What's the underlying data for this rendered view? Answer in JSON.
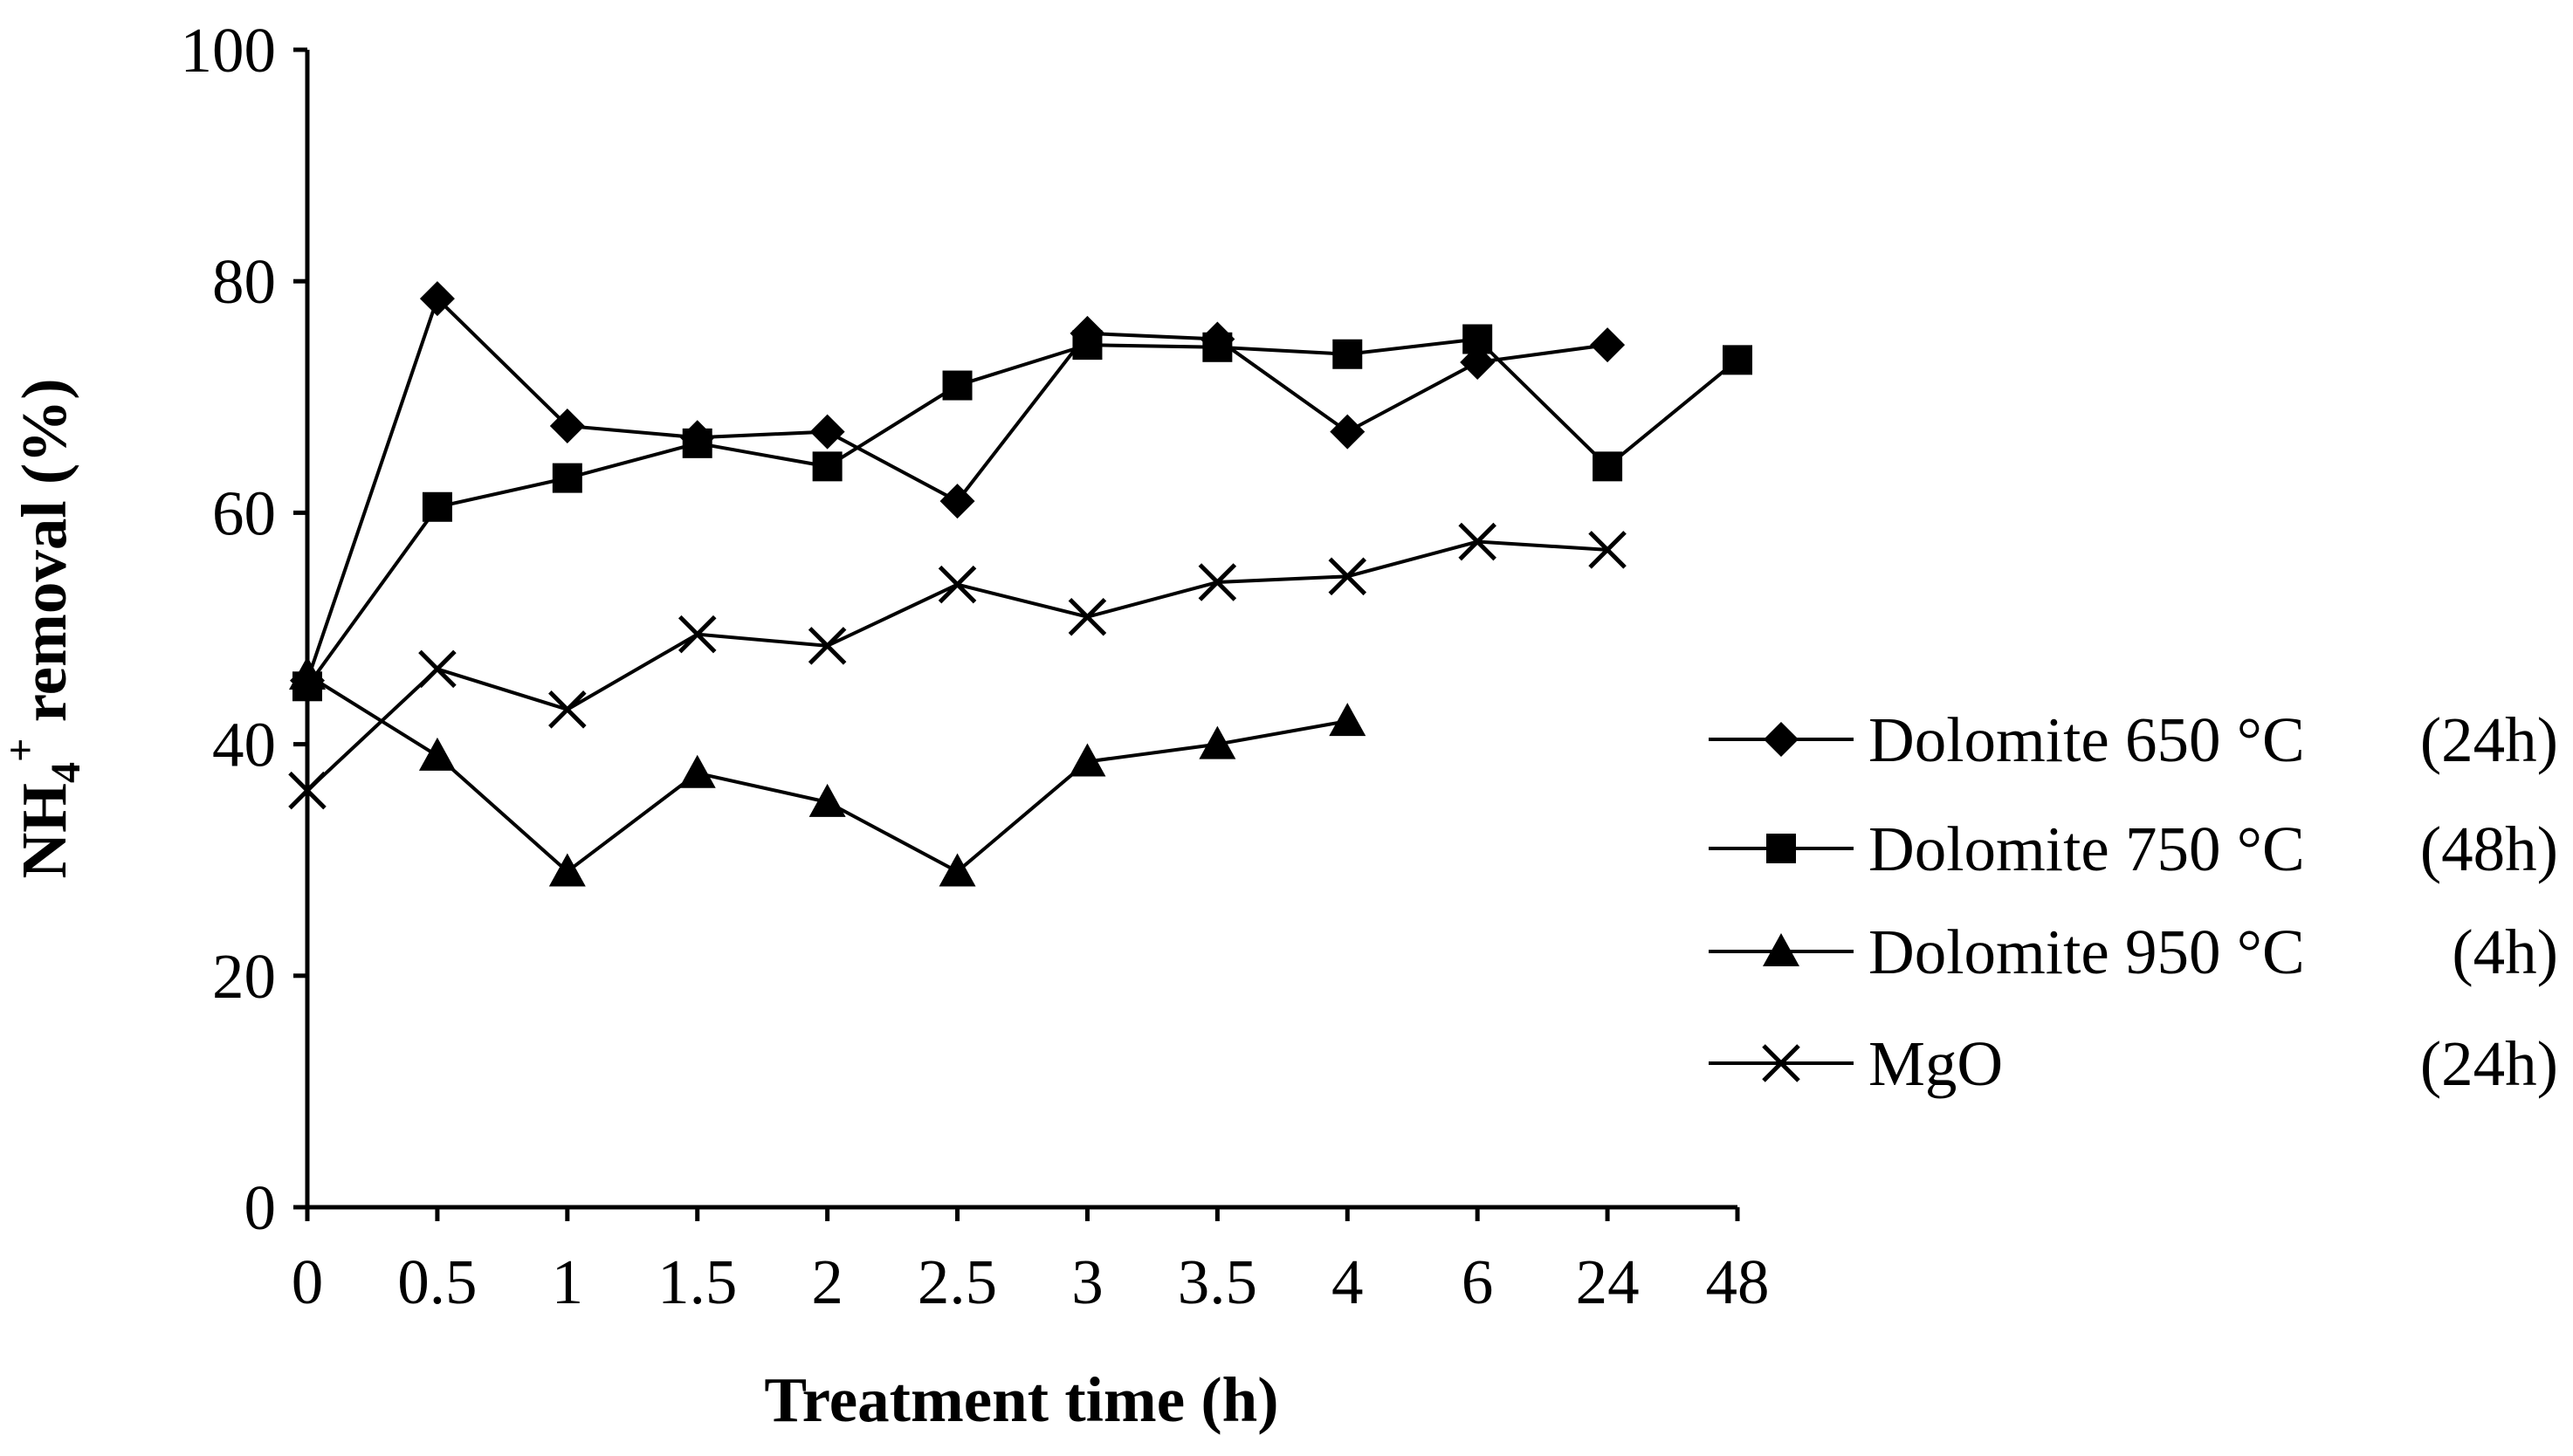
{
  "chart_data": {
    "type": "line",
    "title": "",
    "xlabel": "Treatment time (h)",
    "ylabel": "NH4+ removal (%)",
    "ylabel_parts": {
      "base": "NH",
      "sub": "4",
      "sup": "+",
      "rest": " removal (%)"
    },
    "categories": [
      "0",
      "0.5",
      "1",
      "1.5",
      "2",
      "2.5",
      "3",
      "3.5",
      "4",
      "6",
      "24",
      "48"
    ],
    "ylim": [
      0,
      100
    ],
    "yticks": [
      0,
      20,
      40,
      60,
      80,
      100
    ],
    "ytick_labels": [
      "0",
      "20",
      "40",
      "60",
      "80",
      "100"
    ],
    "grid": false,
    "legend_position": "right",
    "series": [
      {
        "name": "Dolomite 650 °C",
        "duration": "(24h)",
        "marker": "diamond",
        "values": [
          45.5,
          78.5,
          67.5,
          66.5,
          67,
          61,
          75.5,
          75,
          67,
          73,
          74.5,
          null
        ]
      },
      {
        "name": "Dolomite 750 °C",
        "duration": "(48h)",
        "marker": "square",
        "values": [
          45,
          60.5,
          63,
          66,
          64,
          71,
          74.5,
          74.3,
          73.7,
          75,
          64,
          73.2
        ]
      },
      {
        "name": "Dolomite 950 °C",
        "duration": "(4h)",
        "marker": "triangle",
        "values": [
          46,
          39,
          29,
          37.5,
          35,
          29,
          38.5,
          40,
          42,
          null,
          null,
          null
        ]
      },
      {
        "name": "MgO",
        "duration": "(24h)",
        "marker": "x",
        "values": [
          36,
          46.5,
          43,
          49.5,
          48.5,
          53.8,
          51,
          54,
          54.5,
          57.5,
          56.8,
          null
        ]
      }
    ]
  }
}
